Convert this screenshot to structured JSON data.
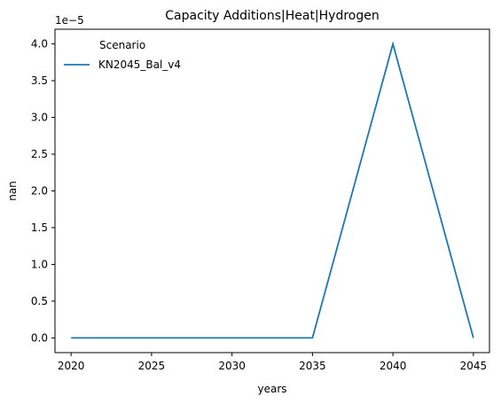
{
  "chart_data": {
    "type": "line",
    "title": "Capacity Additions|Heat|Hydrogen",
    "xlabel": "years",
    "ylabel": "nan",
    "y_offset_label": "1e−5",
    "x": [
      2020,
      2025,
      2030,
      2035,
      2040,
      2045
    ],
    "x_ticks": [
      2020,
      2025,
      2030,
      2035,
      2040,
      2045
    ],
    "y_ticks": [
      0.0,
      0.5,
      1.0,
      1.5,
      2.0,
      2.5,
      3.0,
      3.5,
      4.0
    ],
    "y_tick_labels": [
      "0.0",
      "0.5",
      "1.0",
      "1.5",
      "2.0",
      "2.5",
      "3.0",
      "3.5",
      "4.0"
    ],
    "xlim": [
      2019,
      2046
    ],
    "ylim": [
      -2e-06,
      4.2e-05
    ],
    "grid": false,
    "legend": {
      "title": "Scenario",
      "placement": "upper-left"
    },
    "series": [
      {
        "name": "KN2045_Bal_v4",
        "color": "#1f77b4",
        "values": [
          0,
          0,
          0,
          0,
          4e-05,
          0
        ]
      }
    ]
  }
}
